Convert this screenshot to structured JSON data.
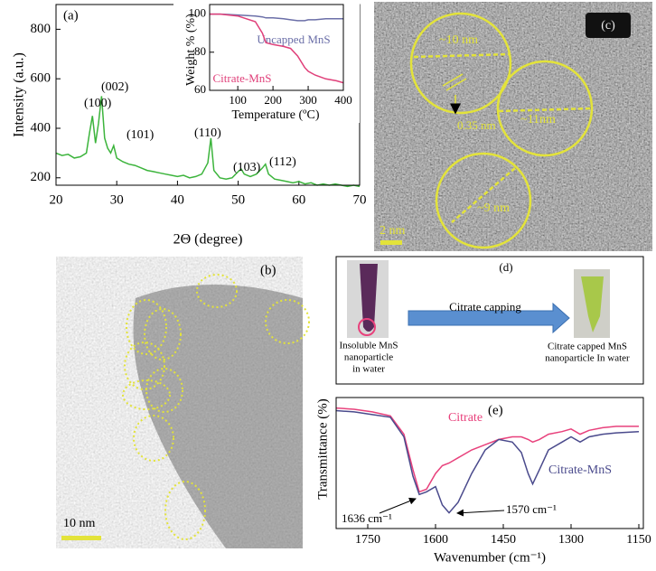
{
  "chart_data": [
    {
      "type": "line",
      "panel_label": "(a)",
      "x_label": "2Θ (degree)",
      "y_label": "Intensity (a.u.)",
      "x": [
        20,
        21,
        22,
        23,
        24,
        25,
        25.5,
        26,
        26.5,
        27,
        27.5,
        28,
        28.5,
        29,
        29.5,
        30,
        31,
        32,
        33,
        34,
        35,
        36,
        37,
        38,
        39,
        40,
        41,
        42,
        43,
        44,
        45,
        45.5,
        46,
        47,
        48,
        49,
        50,
        50.5,
        51,
        52,
        53,
        54,
        54.5,
        55,
        56,
        57,
        58,
        59,
        60,
        61,
        62,
        63,
        64,
        65,
        66,
        67,
        68,
        69,
        70
      ],
      "series": [
        {
          "color": "#3cb43c",
          "values": [
            300,
            290,
            295,
            280,
            285,
            300,
            380,
            450,
            340,
            420,
            530,
            360,
            320,
            300,
            330,
            280,
            265,
            255,
            250,
            240,
            230,
            225,
            220,
            215,
            210,
            205,
            210,
            200,
            205,
            215,
            260,
            360,
            230,
            200,
            195,
            200,
            225,
            235,
            215,
            205,
            215,
            240,
            255,
            215,
            195,
            190,
            185,
            180,
            185,
            175,
            180,
            170,
            175,
            170,
            175,
            170,
            165,
            170,
            165
          ]
        }
      ],
      "xlim": [
        20,
        70
      ],
      "ylim": [
        170,
        900
      ],
      "xticks": [
        20,
        30,
        40,
        50,
        60,
        70
      ],
      "yticks": [
        200,
        400,
        600,
        800
      ],
      "annotations": [
        "(100)",
        "(002)",
        "(101)",
        "(110)",
        "(103)",
        "(112)"
      ]
    },
    {
      "type": "line",
      "x_label": "Temperature (ºC)",
      "y_label": "Weight % (%)",
      "x": [
        20,
        50,
        100,
        150,
        170,
        180,
        200,
        230,
        250,
        270,
        290,
        300,
        320,
        350,
        380,
        400
      ],
      "series": [
        {
          "name": "Uncapped MnS",
          "color": "#6b6fa8",
          "values": [
            100,
            100,
            99.5,
            99,
            98.5,
            98,
            98,
            97.5,
            97,
            96.5,
            96.5,
            97,
            97,
            97.5,
            97.5,
            97.5
          ]
        },
        {
          "name": "Citrate-MnS",
          "color": "#e0407a",
          "values": [
            100,
            100,
            99,
            96,
            90,
            85,
            84,
            83,
            82,
            78,
            72,
            70,
            68,
            66,
            65,
            64
          ]
        }
      ],
      "xlim": [
        20,
        400
      ],
      "ylim": [
        60,
        105
      ],
      "xticks": [
        100,
        200,
        300,
        400
      ],
      "yticks": [
        60,
        80,
        100
      ]
    },
    {
      "type": "line",
      "panel_label": "(e)",
      "x_label": "Wavenumber (cm⁻¹)",
      "y_label": "Transmittance (%)",
      "x": [
        1820,
        1780,
        1740,
        1700,
        1670,
        1650,
        1636,
        1620,
        1600,
        1585,
        1570,
        1550,
        1520,
        1490,
        1460,
        1430,
        1410,
        1395,
        1385,
        1370,
        1350,
        1320,
        1300,
        1280,
        1260,
        1230,
        1200,
        1150
      ],
      "series": [
        {
          "name": "Citrate",
          "color": "#e8417c",
          "values": [
            92,
            91,
            89,
            86,
            72,
            45,
            28,
            30,
            42,
            48,
            50,
            54,
            60,
            64,
            68,
            70,
            70,
            68,
            66,
            68,
            72,
            74,
            76,
            72,
            75,
            77,
            78,
            78
          ]
        },
        {
          "name": "Citrate-MnS",
          "color": "#4a4a8c",
          "values": [
            90,
            89,
            87,
            85,
            70,
            40,
            26,
            28,
            32,
            18,
            12,
            20,
            42,
            60,
            68,
            66,
            58,
            42,
            34,
            45,
            60,
            66,
            70,
            66,
            70,
            72,
            73,
            74
          ]
        }
      ],
      "xlim": [
        1820,
        1140
      ],
      "ylim": [
        0,
        100
      ],
      "xticks": [
        1750,
        1600,
        1450,
        1300,
        1150
      ],
      "annotations": [
        "1636 cm⁻¹",
        "1570 cm⁻¹"
      ]
    }
  ],
  "panels": {
    "b": {
      "label": "(b)",
      "scale_bar": "10 nm"
    },
    "c": {
      "label": "(c)",
      "annotations": [
        "~10 nm",
        "0.35 nm",
        "~11nm",
        "~9 nm"
      ],
      "scale_bar": "2 nm"
    },
    "d": {
      "label": "(d)",
      "arrow_label": "Citrate capping",
      "left_caption": [
        "Insoluble MnS",
        "nanoparticle",
        "in water"
      ],
      "right_caption": [
        "Citrate capped MnS",
        "nanoparticle In water"
      ]
    }
  }
}
